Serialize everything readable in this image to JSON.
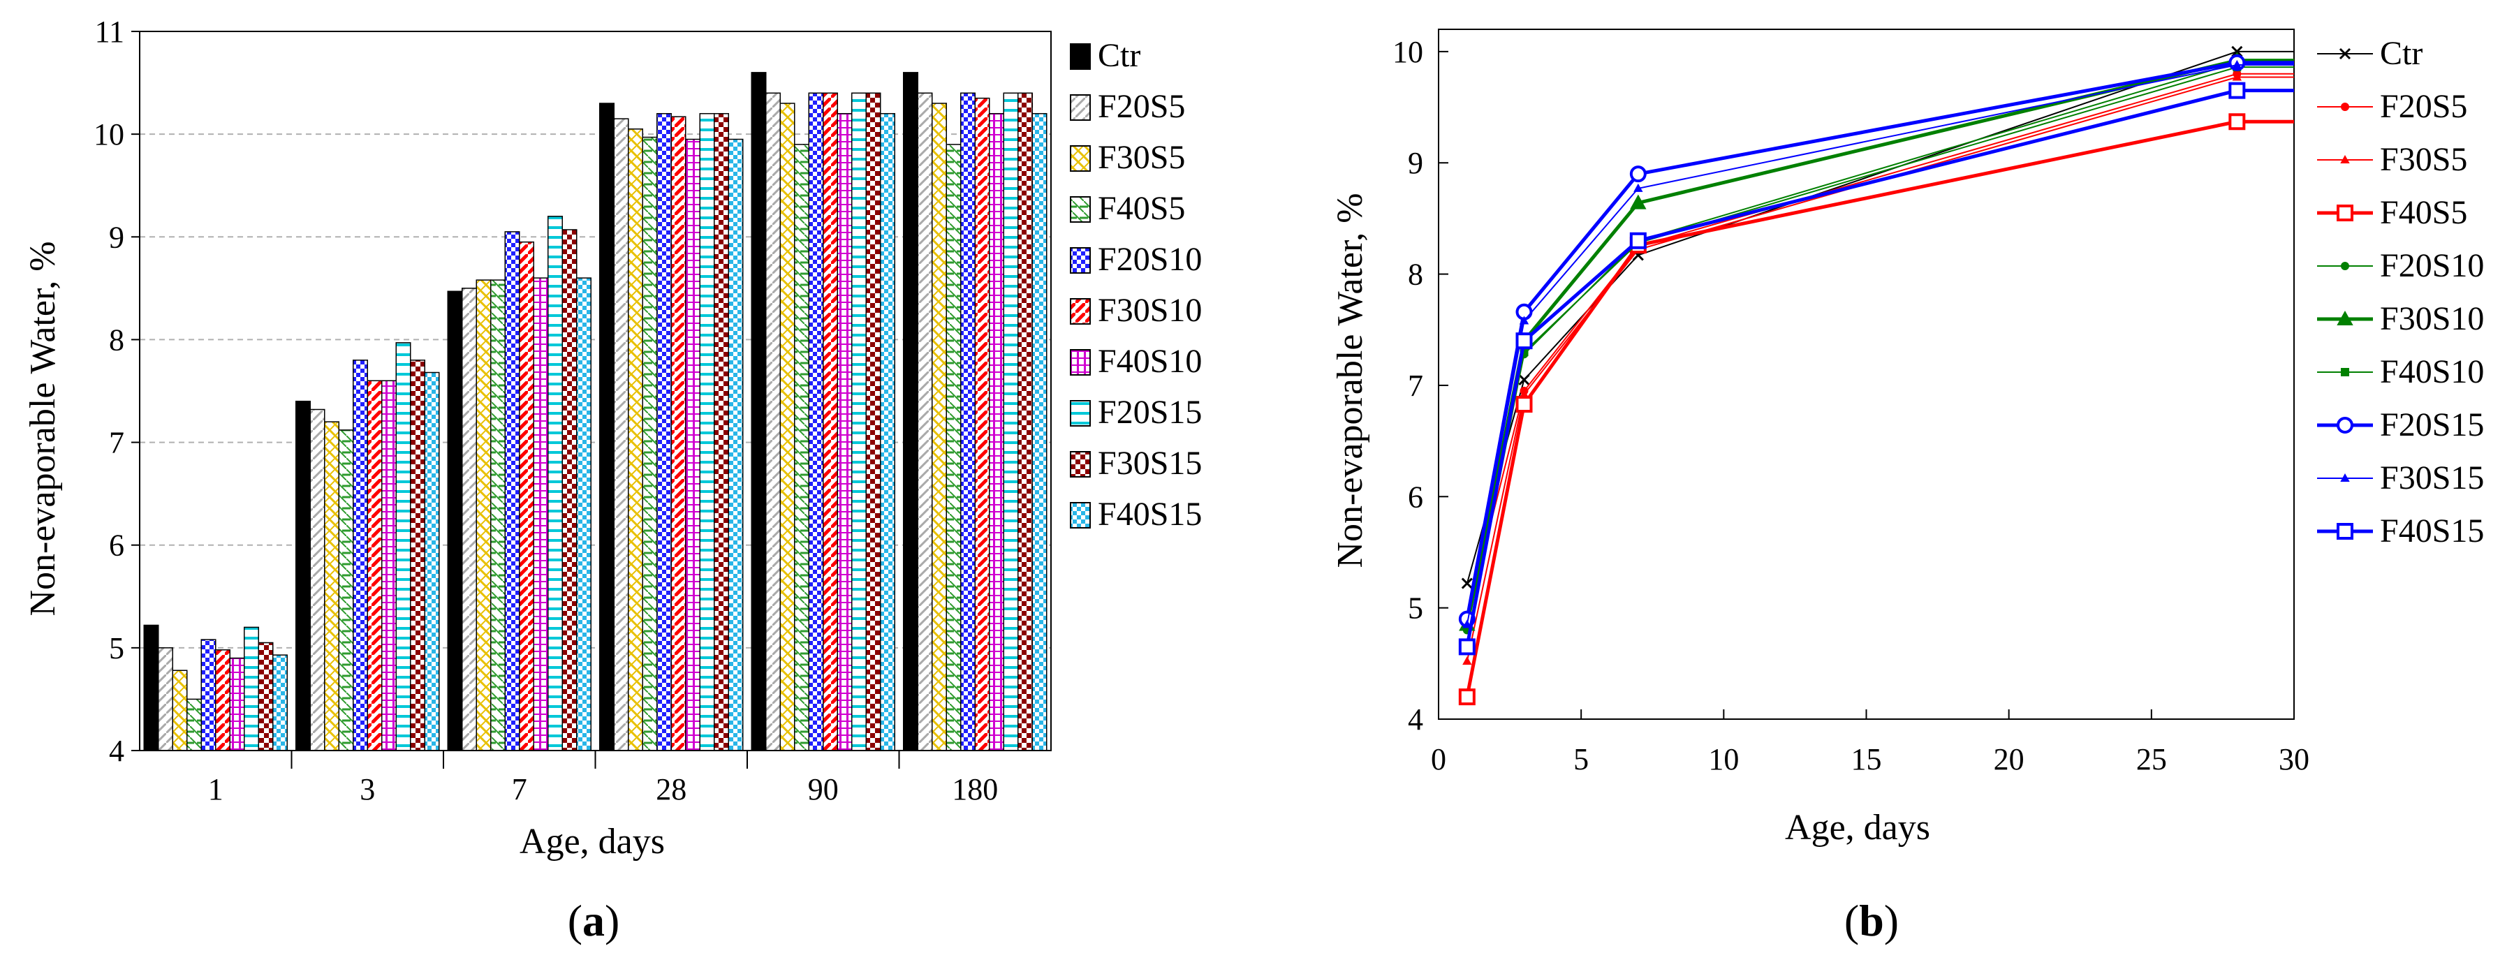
{
  "chart_data": [
    {
      "type": "bar",
      "panel": "a",
      "panel_label_open": "(",
      "panel_label_letter": "a",
      "panel_label_close": ")",
      "xlabel": "Age, days",
      "ylabel": "Non-evaporable Water, %",
      "ylim": [
        4,
        11
      ],
      "yticks": [
        "4",
        "5",
        "6",
        "7",
        "8",
        "9",
        "10",
        "11"
      ],
      "grid": "horizontal dashed",
      "legend_position": "right",
      "categories": [
        "1",
        "3",
        "7",
        "28",
        "90",
        "180"
      ],
      "series": [
        {
          "name": "Ctr",
          "fill": "#000000",
          "pattern": "solid",
          "values": [
            5.22,
            7.4,
            8.47,
            10.3,
            10.6,
            10.6
          ]
        },
        {
          "name": "F20S5",
          "fill": "#ffffff",
          "pattern": "hatch-lightgray",
          "values": [
            5.0,
            7.32,
            8.5,
            10.15,
            10.4,
            10.4
          ]
        },
        {
          "name": "F30S5",
          "fill": "#ffffff",
          "pattern": "hatch-yellow",
          "values": [
            4.78,
            7.2,
            8.58,
            10.05,
            10.3,
            10.3
          ]
        },
        {
          "name": "F40S5",
          "fill": "#ffffff",
          "pattern": "hatch-green",
          "values": [
            4.5,
            7.12,
            8.58,
            9.97,
            9.9,
            9.9
          ]
        },
        {
          "name": "F20S10",
          "fill": "#ffffff",
          "pattern": "check-blue",
          "values": [
            5.08,
            7.8,
            9.05,
            10.2,
            10.4,
            10.4
          ]
        },
        {
          "name": "F30S10",
          "fill": "#ffffff",
          "pattern": "hatch-red",
          "values": [
            4.98,
            7.6,
            8.95,
            10.17,
            10.4,
            10.35
          ]
        },
        {
          "name": "F40S10",
          "fill": "#ffffff",
          "pattern": "dots-magenta",
          "values": [
            4.9,
            7.6,
            8.6,
            9.95,
            10.2,
            10.2
          ]
        },
        {
          "name": "F20S15",
          "fill": "#ffffff",
          "pattern": "lines-cyan",
          "values": [
            5.2,
            7.97,
            9.2,
            10.2,
            10.4,
            10.4
          ]
        },
        {
          "name": "F30S15",
          "fill": "#ffffff",
          "pattern": "check-maroon",
          "values": [
            5.05,
            7.8,
            9.07,
            10.2,
            10.4,
            10.4
          ]
        },
        {
          "name": "F40S15",
          "fill": "#ffffff",
          "pattern": "check-lightblue",
          "values": [
            4.93,
            7.68,
            8.6,
            9.95,
            10.2,
            10.2
          ]
        }
      ]
    },
    {
      "type": "line",
      "panel": "b",
      "panel_label_open": "(",
      "panel_label_letter": "b",
      "panel_label_close": ")",
      "xlabel": "Age, days",
      "ylabel": "Non-evaporable Water, %",
      "xlim": [
        0,
        30
      ],
      "ylim": [
        4,
        10.2
      ],
      "xticks": [
        "0",
        "5",
        "10",
        "15",
        "20",
        "25",
        "30"
      ],
      "yticks": [
        "4",
        "5",
        "6",
        "7",
        "8",
        "9",
        "10"
      ],
      "legend_position": "right",
      "x": [
        1,
        3,
        7,
        28,
        30
      ],
      "series": [
        {
          "name": "Ctr",
          "color": "#000000",
          "marker": "x",
          "width": 2,
          "values": [
            5.22,
            7.05,
            8.17,
            10.0,
            10.0
          ]
        },
        {
          "name": "F20S5",
          "color": "#ff0000",
          "marker": "circle-small",
          "width": 2,
          "values": [
            4.92,
            6.95,
            8.25,
            9.8,
            9.8
          ]
        },
        {
          "name": "F30S5",
          "color": "#ff0000",
          "marker": "triangle-small",
          "width": 2,
          "values": [
            4.52,
            6.92,
            8.22,
            9.77,
            9.77
          ]
        },
        {
          "name": "F40S5",
          "color": "#ff0000",
          "marker": "square",
          "width": 5,
          "values": [
            4.2,
            6.83,
            8.26,
            9.37,
            9.37
          ]
        },
        {
          "name": "F20S10",
          "color": "#008000",
          "marker": "circle-small",
          "width": 2,
          "values": [
            4.8,
            7.28,
            8.3,
            9.9,
            9.9
          ]
        },
        {
          "name": "F30S10",
          "color": "#008000",
          "marker": "triangle",
          "width": 5,
          "values": [
            4.85,
            7.4,
            8.64,
            9.92,
            9.92
          ]
        },
        {
          "name": "F40S10",
          "color": "#008000",
          "marker": "square-small",
          "width": 2,
          "values": [
            4.65,
            7.3,
            8.28,
            9.86,
            9.86
          ]
        },
        {
          "name": "F20S15",
          "color": "#0000ff",
          "marker": "circle",
          "width": 5,
          "values": [
            4.9,
            7.66,
            8.9,
            9.9,
            9.9
          ]
        },
        {
          "name": "F30S15",
          "color": "#0000ff",
          "marker": "triangle-small",
          "width": 2,
          "values": [
            4.85,
            7.58,
            8.77,
            9.88,
            9.88
          ]
        },
        {
          "name": "F40S15",
          "color": "#0000ff",
          "marker": "square",
          "width": 5,
          "values": [
            4.65,
            7.4,
            8.3,
            9.65,
            9.65
          ]
        }
      ]
    }
  ]
}
